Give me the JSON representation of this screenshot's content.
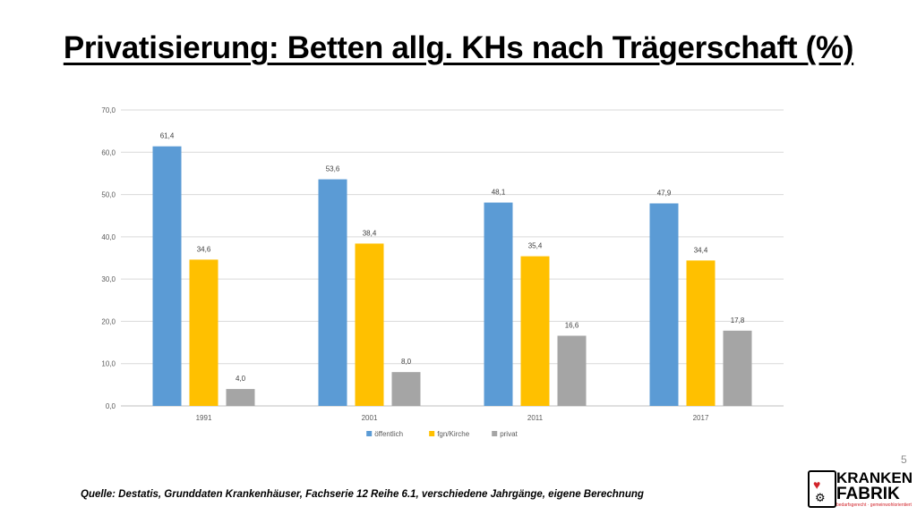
{
  "slide": {
    "title": "Privatisierung: Betten allg. KHs nach Trägerschaft (%)",
    "page_number": "5",
    "source": "Quelle: Destatis, Grunddaten Krankenhäuser, Fachserie 12 Reihe 6.1, verschiedene Jahrgänge, eigene Berechnung"
  },
  "logo": {
    "word1": "KRANKEN",
    "word2": "FABRIK",
    "tagline": "bedarfsgerecht · gemeinwohlorientiert"
  },
  "chart_data": {
    "type": "bar",
    "title": "",
    "xlabel": "",
    "ylabel": "",
    "categories": [
      "1991",
      "2001",
      "2011",
      "2017"
    ],
    "series": [
      {
        "name": "öffentlich",
        "values": [
          61.4,
          53.6,
          48.1,
          47.9
        ],
        "labels": [
          "61,4",
          "53,6",
          "48,1",
          "47,9"
        ],
        "color": "#5b9bd5"
      },
      {
        "name": "fgn/Kirche",
        "values": [
          34.6,
          38.4,
          35.4,
          34.4
        ],
        "labels": [
          "34,6",
          "38,4",
          "35,4",
          "34,4"
        ],
        "color": "#ffc000"
      },
      {
        "name": "privat",
        "values": [
          4.0,
          8.0,
          16.6,
          17.8
        ],
        "labels": [
          "4,0",
          "8,0",
          "16,6",
          "17,8"
        ],
        "color": "#a5a5a5"
      }
    ],
    "ylim": [
      0,
      70
    ],
    "yticks": [
      0,
      10,
      20,
      30,
      40,
      50,
      60,
      70
    ],
    "ytick_labels": [
      "0,0",
      "10,0",
      "20,0",
      "30,0",
      "40,0",
      "50,0",
      "60,0",
      "70,0"
    ],
    "grid": true,
    "legend_position": "bottom"
  }
}
